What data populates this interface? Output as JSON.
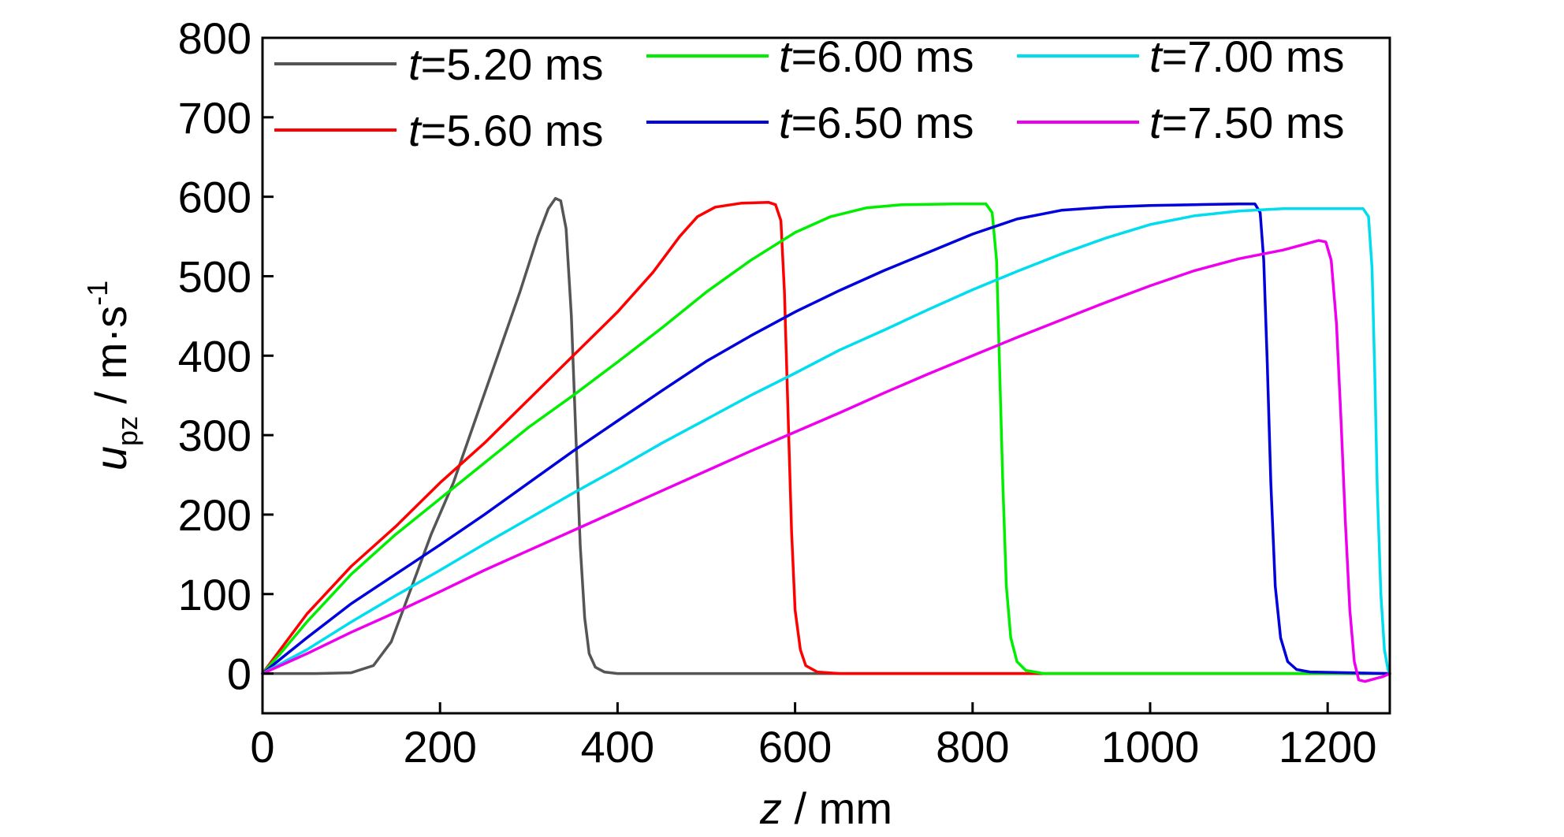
{
  "chart_data": {
    "type": "line",
    "xlabel": "z / mm",
    "xlabel_var": "z",
    "xlabel_unit": " / mm",
    "ylabel_var": "u",
    "ylabel_sub": "pz",
    "ylabel_unit": " / m·s",
    "ylabel_exp": "-1",
    "xlim": [
      0,
      1270
    ],
    "ylim": [
      -50,
      800
    ],
    "xticks": [
      0,
      200,
      400,
      600,
      800,
      1000,
      1200
    ],
    "yticks": [
      0,
      100,
      200,
      300,
      400,
      500,
      600,
      700,
      800
    ],
    "grid": false,
    "legend_placement": "top",
    "series": [
      {
        "name": "t=5.20 ms",
        "name_var": "t",
        "name_rest": "=5.20 ms",
        "color": "#555555",
        "points": [
          [
            0,
            0
          ],
          [
            60,
            0
          ],
          [
            100,
            1
          ],
          [
            125,
            10
          ],
          [
            145,
            40
          ],
          [
            165,
            100
          ],
          [
            190,
            175
          ],
          [
            215,
            240
          ],
          [
            240,
            320
          ],
          [
            265,
            400
          ],
          [
            290,
            480
          ],
          [
            310,
            550
          ],
          [
            322,
            585
          ],
          [
            330,
            598
          ],
          [
            336,
            595
          ],
          [
            342,
            560
          ],
          [
            348,
            450
          ],
          [
            353,
            300
          ],
          [
            358,
            160
          ],
          [
            363,
            70
          ],
          [
            368,
            25
          ],
          [
            375,
            8
          ],
          [
            385,
            2
          ],
          [
            400,
            0
          ],
          [
            600,
            0
          ],
          [
            1270,
            0
          ]
        ]
      },
      {
        "name": "t=5.60 ms",
        "name_var": "t",
        "name_rest": "=5.60 ms",
        "color": "#ff0000",
        "points": [
          [
            0,
            0
          ],
          [
            20,
            30
          ],
          [
            50,
            75
          ],
          [
            100,
            135
          ],
          [
            150,
            185
          ],
          [
            200,
            240
          ],
          [
            250,
            290
          ],
          [
            300,
            345
          ],
          [
            350,
            400
          ],
          [
            400,
            455
          ],
          [
            440,
            505
          ],
          [
            470,
            550
          ],
          [
            490,
            575
          ],
          [
            510,
            587
          ],
          [
            540,
            592
          ],
          [
            570,
            593
          ],
          [
            578,
            590
          ],
          [
            584,
            570
          ],
          [
            588,
            480
          ],
          [
            592,
            330
          ],
          [
            596,
            180
          ],
          [
            600,
            80
          ],
          [
            606,
            30
          ],
          [
            612,
            10
          ],
          [
            625,
            2
          ],
          [
            650,
            0
          ],
          [
            800,
            0
          ],
          [
            1270,
            0
          ]
        ]
      },
      {
        "name": "t=6.00 ms",
        "name_var": "t",
        "name_rest": "=6.00 ms",
        "color": "#00ee00",
        "points": [
          [
            0,
            0
          ],
          [
            20,
            25
          ],
          [
            50,
            65
          ],
          [
            100,
            125
          ],
          [
            150,
            175
          ],
          [
            200,
            220
          ],
          [
            250,
            265
          ],
          [
            300,
            310
          ],
          [
            350,
            350
          ],
          [
            400,
            392
          ],
          [
            450,
            435
          ],
          [
            500,
            480
          ],
          [
            550,
            520
          ],
          [
            600,
            555
          ],
          [
            640,
            575
          ],
          [
            680,
            586
          ],
          [
            720,
            590
          ],
          [
            780,
            591
          ],
          [
            815,
            591
          ],
          [
            822,
            580
          ],
          [
            827,
            520
          ],
          [
            830,
            400
          ],
          [
            834,
            240
          ],
          [
            838,
            110
          ],
          [
            843,
            45
          ],
          [
            850,
            15
          ],
          [
            860,
            4
          ],
          [
            880,
            0
          ],
          [
            1000,
            0
          ],
          [
            1270,
            0
          ]
        ]
      },
      {
        "name": "t=6.50 ms",
        "name_var": "t",
        "name_rest": "=6.50 ms",
        "color": "#0000dd",
        "points": [
          [
            0,
            0
          ],
          [
            20,
            18
          ],
          [
            50,
            45
          ],
          [
            100,
            88
          ],
          [
            150,
            125
          ],
          [
            200,
            162
          ],
          [
            250,
            200
          ],
          [
            300,
            240
          ],
          [
            350,
            280
          ],
          [
            400,
            318
          ],
          [
            450,
            356
          ],
          [
            500,
            393
          ],
          [
            550,
            425
          ],
          [
            600,
            455
          ],
          [
            650,
            482
          ],
          [
            700,
            507
          ],
          [
            750,
            530
          ],
          [
            800,
            553
          ],
          [
            850,
            572
          ],
          [
            900,
            583
          ],
          [
            950,
            587
          ],
          [
            1000,
            589
          ],
          [
            1050,
            590
          ],
          [
            1100,
            591
          ],
          [
            1118,
            591
          ],
          [
            1124,
            580
          ],
          [
            1128,
            520
          ],
          [
            1132,
            390
          ],
          [
            1136,
            240
          ],
          [
            1141,
            110
          ],
          [
            1147,
            45
          ],
          [
            1155,
            15
          ],
          [
            1165,
            5
          ],
          [
            1180,
            2
          ],
          [
            1270,
            0
          ]
        ]
      },
      {
        "name": "t=7.00 ms",
        "name_var": "t",
        "name_rest": "=7.00 ms",
        "color": "#00ddee",
        "points": [
          [
            0,
            0
          ],
          [
            50,
            30
          ],
          [
            100,
            65
          ],
          [
            150,
            98
          ],
          [
            200,
            130
          ],
          [
            250,
            163
          ],
          [
            300,
            195
          ],
          [
            350,
            227
          ],
          [
            400,
            258
          ],
          [
            450,
            290
          ],
          [
            500,
            320
          ],
          [
            550,
            350
          ],
          [
            600,
            378
          ],
          [
            650,
            407
          ],
          [
            700,
            432
          ],
          [
            750,
            458
          ],
          [
            800,
            483
          ],
          [
            850,
            506
          ],
          [
            900,
            528
          ],
          [
            950,
            548
          ],
          [
            1000,
            565
          ],
          [
            1050,
            576
          ],
          [
            1100,
            582
          ],
          [
            1150,
            585
          ],
          [
            1200,
            585
          ],
          [
            1240,
            585
          ],
          [
            1246,
            575
          ],
          [
            1250,
            510
          ],
          [
            1253,
            380
          ],
          [
            1256,
            230
          ],
          [
            1260,
            100
          ],
          [
            1264,
            30
          ],
          [
            1268,
            5
          ],
          [
            1270,
            0
          ]
        ]
      },
      {
        "name": "t=7.50 ms",
        "name_var": "t",
        "name_rest": "=7.50 ms",
        "color": "#ee00ee",
        "points": [
          [
            0,
            0
          ],
          [
            50,
            25
          ],
          [
            100,
            52
          ],
          [
            150,
            77
          ],
          [
            200,
            103
          ],
          [
            250,
            130
          ],
          [
            300,
            155
          ],
          [
            350,
            180
          ],
          [
            400,
            205
          ],
          [
            450,
            230
          ],
          [
            500,
            255
          ],
          [
            550,
            280
          ],
          [
            600,
            304
          ],
          [
            650,
            328
          ],
          [
            700,
            353
          ],
          [
            750,
            377
          ],
          [
            800,
            400
          ],
          [
            850,
            423
          ],
          [
            900,
            445
          ],
          [
            950,
            467
          ],
          [
            1000,
            488
          ],
          [
            1050,
            507
          ],
          [
            1100,
            522
          ],
          [
            1150,
            533
          ],
          [
            1190,
            545
          ],
          [
            1198,
            543
          ],
          [
            1204,
            520
          ],
          [
            1210,
            440
          ],
          [
            1215,
            320
          ],
          [
            1220,
            190
          ],
          [
            1225,
            80
          ],
          [
            1230,
            15
          ],
          [
            1235,
            -8
          ],
          [
            1242,
            -10
          ],
          [
            1252,
            -7
          ],
          [
            1262,
            -4
          ],
          [
            1270,
            0
          ]
        ]
      }
    ]
  }
}
